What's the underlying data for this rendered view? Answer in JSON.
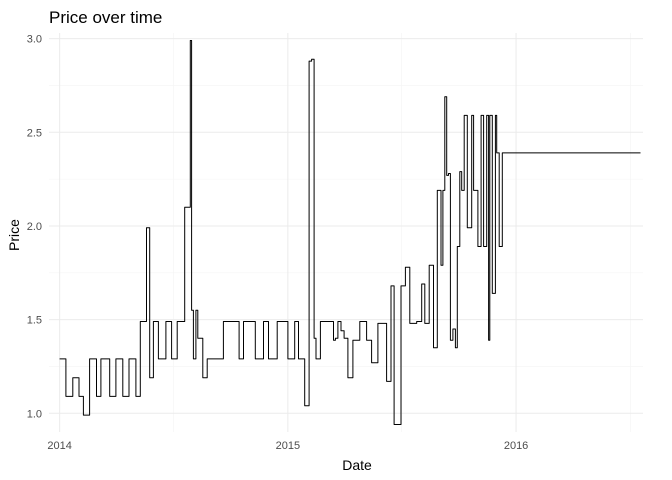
{
  "chart_data": {
    "type": "line",
    "title": "Price over time",
    "xlabel": "Date",
    "ylabel": "Price",
    "xlim": [
      "2013-12-15",
      "2016-07-22"
    ],
    "ylim": [
      0.9,
      3.03
    ],
    "x_ticks": [
      {
        "value": "2014-01-01",
        "label": "2014"
      },
      {
        "value": "2015-01-01",
        "label": "2015"
      },
      {
        "value": "2016-01-01",
        "label": "2016"
      }
    ],
    "y_ticks": [
      {
        "value": 1.0,
        "label": "1.0"
      },
      {
        "value": 1.5,
        "label": "1.5"
      },
      {
        "value": 2.0,
        "label": "2.0"
      },
      {
        "value": 2.5,
        "label": "2.5"
      },
      {
        "value": 3.0,
        "label": "3.0"
      }
    ],
    "grid": true,
    "legend": "none",
    "series": [
      {
        "color": "#000000",
        "step": "hv",
        "x": [
          "2014-01-01",
          "2014-01-11",
          "2014-01-22",
          "2014-02-01",
          "2014-02-08",
          "2014-02-18",
          "2014-03-01",
          "2014-03-08",
          "2014-03-22",
          "2014-04-01",
          "2014-04-12",
          "2014-04-22",
          "2014-05-03",
          "2014-05-10",
          "2014-05-20",
          "2014-05-25",
          "2014-05-31",
          "2014-06-08",
          "2014-06-20",
          "2014-06-29",
          "2014-07-08",
          "2014-07-20",
          "2014-07-29",
          "2014-07-31",
          "2014-08-03",
          "2014-08-07",
          "2014-08-10",
          "2014-08-18",
          "2014-08-25",
          "2014-09-08",
          "2014-09-20",
          "2014-10-15",
          "2014-10-22",
          "2014-11-10",
          "2014-11-23",
          "2014-12-01",
          "2014-12-15",
          "2015-01-01",
          "2015-01-12",
          "2015-01-18",
          "2015-01-28",
          "2015-02-04",
          "2015-02-08",
          "2015-02-12",
          "2015-02-15",
          "2015-02-22",
          "2015-03-15",
          "2015-03-18",
          "2015-03-22",
          "2015-03-27",
          "2015-04-01",
          "2015-04-07",
          "2015-04-15",
          "2015-04-26",
          "2015-05-07",
          "2015-05-15",
          "2015-05-25",
          "2015-06-08",
          "2015-06-15",
          "2015-06-20",
          "2015-07-01",
          "2015-07-08",
          "2015-07-15",
          "2015-07-26",
          "2015-08-03",
          "2015-08-08",
          "2015-08-15",
          "2015-08-22",
          "2015-08-28",
          "2015-09-03",
          "2015-09-06",
          "2015-09-09",
          "2015-09-12",
          "2015-09-15",
          "2015-09-18",
          "2015-09-22",
          "2015-09-26",
          "2015-09-29",
          "2015-10-03",
          "2015-10-06",
          "2015-10-10",
          "2015-10-15",
          "2015-10-22",
          "2015-10-25",
          "2015-11-01",
          "2015-11-06",
          "2015-11-10",
          "2015-11-15",
          "2015-11-18",
          "2015-11-20",
          "2015-11-24",
          "2015-11-29",
          "2015-12-01",
          "2015-12-05",
          "2015-12-10",
          "2015-12-15",
          "2015-12-22",
          "2016-01-01",
          "2016-01-06",
          "2016-01-18",
          "2016-01-26",
          "2016-02-01",
          "2016-02-04",
          "2016-02-12",
          "2016-02-20",
          "2016-03-01",
          "2016-03-09",
          "2016-03-13",
          "2016-03-20",
          "2016-03-28",
          "2016-04-03",
          "2016-04-11",
          "2016-04-16",
          "2016-04-27",
          "2016-05-04",
          "2016-05-12",
          "2016-05-15",
          "2016-05-20",
          "2016-05-23",
          "2016-05-27",
          "2016-06-01",
          "2016-06-04",
          "2016-06-08",
          "2016-06-14",
          "2016-06-21",
          "2016-06-27",
          "2016-07-07",
          "2016-07-15",
          "2016-07-18"
        ],
        "y": [
          1.29,
          1.09,
          1.19,
          1.09,
          0.99,
          1.29,
          1.09,
          1.29,
          1.09,
          1.29,
          1.09,
          1.29,
          1.09,
          1.49,
          1.99,
          1.19,
          1.49,
          1.29,
          1.49,
          1.29,
          1.49,
          2.1,
          2.99,
          1.55,
          1.29,
          1.55,
          1.4,
          1.19,
          1.29,
          1.29,
          1.49,
          1.29,
          1.49,
          1.29,
          1.49,
          1.29,
          1.49,
          1.29,
          1.49,
          1.29,
          1.04,
          2.88,
          2.89,
          1.4,
          1.29,
          1.49,
          1.39,
          1.4,
          1.49,
          1.44,
          1.4,
          1.19,
          1.39,
          1.49,
          1.39,
          1.27,
          1.48,
          1.17,
          1.68,
          0.94,
          1.68,
          1.78,
          1.48,
          1.49,
          1.69,
          1.48,
          1.79,
          1.35,
          2.19,
          1.79,
          2.19,
          2.69,
          2.27,
          2.28,
          1.39,
          1.45,
          1.35,
          1.89,
          2.29,
          2.19,
          2.59,
          1.99,
          2.59,
          2.19,
          1.89,
          2.59,
          1.89,
          2.59,
          1.39,
          2.59,
          1.64,
          2.59,
          2.39,
          1.89,
          2.39,
          2.39,
          2.39,
          2.39,
          2.39,
          2.39,
          2.39,
          2.39,
          2.39,
          2.39,
          2.39,
          2.39,
          2.39,
          2.39,
          2.39,
          2.39,
          2.39,
          2.39,
          2.39,
          2.39,
          2.39,
          2.39,
          2.39,
          2.39,
          2.39,
          2.39,
          2.39,
          2.39,
          2.39,
          2.39,
          2.39,
          2.39,
          2.39,
          2.39,
          2.39
        ]
      }
    ]
  }
}
